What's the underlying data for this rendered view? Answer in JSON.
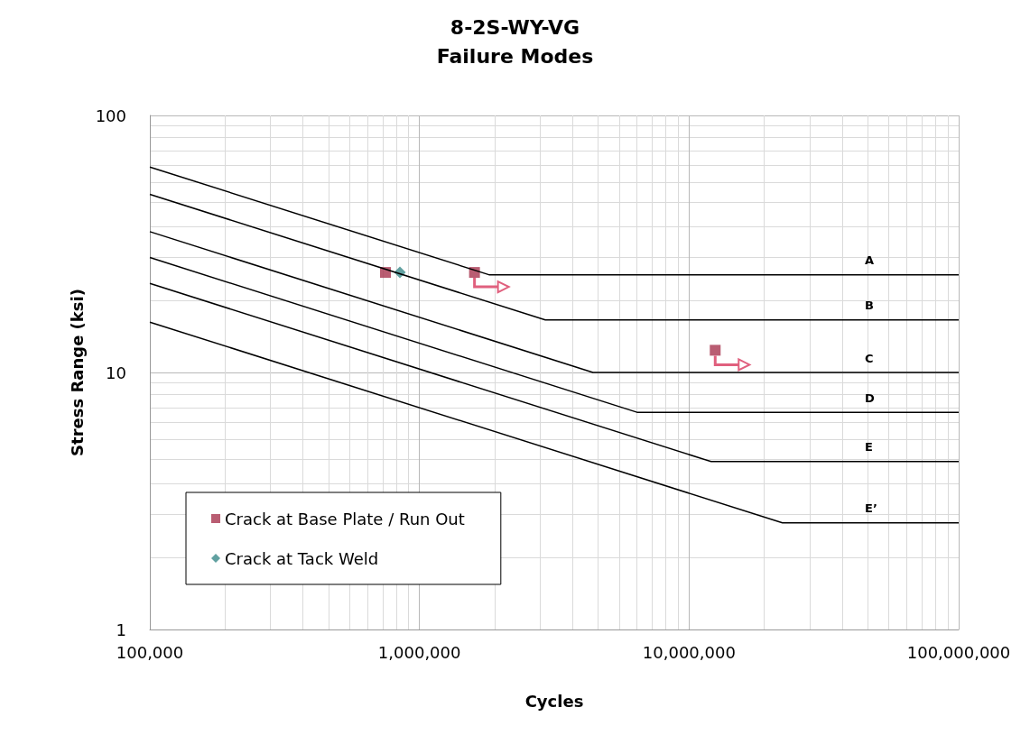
{
  "chart_data": {
    "type": "line",
    "title": "8-2S-WY-VG",
    "subtitle": "Failure Modes",
    "xlabel": "Cycles",
    "ylabel": "Stress Range (ksi)",
    "log": "xy",
    "grid": true,
    "legend": "bottom left",
    "line_style": "solid",
    "xlim": [
      100000,
      100000000
    ],
    "xticks": [
      {
        "value": 100000,
        "label": "100,000"
      },
      {
        "value": 1000000,
        "label": "1,000,000"
      },
      {
        "value": 10000000,
        "label": "10,000,000"
      },
      {
        "value": 100000000,
        "label": "100,000,000"
      }
    ],
    "ylim": [
      1,
      100
    ],
    "yticks": [
      1,
      10,
      100
    ],
    "series": [
      {
        "name": "A",
        "color": "#000000",
        "x": [
          100000,
          1810000,
          100000000
        ],
        "values": [
          63,
          24,
          24
        ]
      },
      {
        "name": "B",
        "color": "#000000",
        "x": [
          100000,
          2930000,
          100000000
        ],
        "values": [
          49.3,
          16,
          16
        ]
      },
      {
        "name": "C",
        "color": "#000000",
        "x": [
          100000,
          4400000,
          100000000
        ],
        "values": [
          35.3,
          10,
          10
        ]
      },
      {
        "name": "D",
        "color": "#000000",
        "x": [
          100000,
          6410000,
          100000000
        ],
        "values": [
          28,
          7,
          7
        ]
      },
      {
        "name": "E",
        "color": "#000000",
        "x": [
          100000,
          12070000,
          100000000
        ],
        "values": [
          22.2,
          4.5,
          4.5
        ]
      },
      {
        "name": "E’",
        "color": "#000000",
        "x": [
          100000,
          22200000,
          100000000
        ],
        "values": [
          15.7,
          2.6,
          2.6
        ]
      },
      {
        "type": "scatter",
        "name": "Crack at Base Plate / Run Out",
        "marker": "square",
        "color": "#a8344f",
        "x": [
          748000,
          1600000,
          12500000
        ],
        "values": [
          24.5,
          24.5,
          12.2
        ]
      },
      {
        "type": "scatter",
        "name": "Crack at Tack Weld",
        "marker": "diamond",
        "color": "#3a8a8a",
        "x": [
          846000
        ],
        "values": [
          24.5
        ]
      }
    ]
  }
}
